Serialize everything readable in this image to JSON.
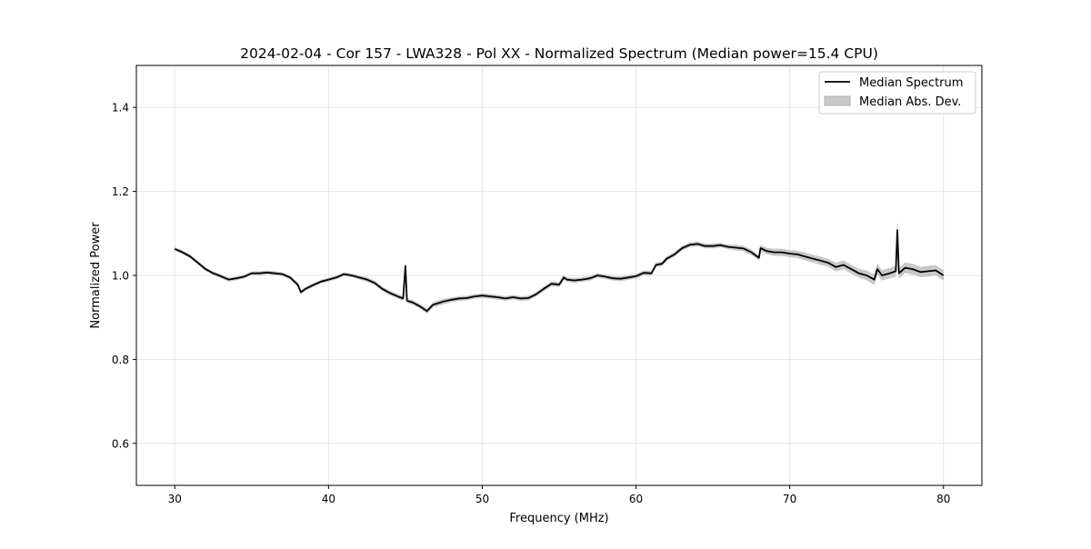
{
  "chart_data": {
    "type": "line",
    "title": "2024-02-04 - Cor 157 - LWA328 - Pol XX - Normalized Spectrum (Median power=15.4 CPU)",
    "xlabel": "Frequency (MHz)",
    "ylabel": "Normalized Power",
    "xlim": [
      27.5,
      82.5
    ],
    "ylim": [
      0.5,
      1.5
    ],
    "xticks": [
      30,
      40,
      50,
      60,
      70,
      80
    ],
    "xtick_labels": [
      "30",
      "40",
      "50",
      "60",
      "70",
      "80"
    ],
    "yticks": [
      0.6,
      0.8,
      1.0,
      1.2,
      1.4
    ],
    "ytick_labels": [
      "0.6",
      "0.8",
      "1.0",
      "1.2",
      "1.4"
    ],
    "grid": true,
    "legend_position": "top-right",
    "legend": [
      {
        "label": "Median Spectrum",
        "kind": "line",
        "color": "#000000"
      },
      {
        "label": "Median Abs. Dev.",
        "kind": "band",
        "color": "#c8c8c8"
      }
    ],
    "series": [
      {
        "name": "Median Spectrum",
        "columns": [
          "frequency_mhz",
          "median",
          "mad"
        ],
        "points": [
          [
            30,
            1.063,
            0.004
          ],
          [
            30.5,
            1.055,
            0.004
          ],
          [
            31,
            1.045,
            0.004
          ],
          [
            31.5,
            1.03,
            0.004
          ],
          [
            32,
            1.015,
            0.004
          ],
          [
            32.5,
            1.005,
            0.004
          ],
          [
            33,
            0.998,
            0.004
          ],
          [
            33.5,
            0.99,
            0.004
          ],
          [
            34,
            0.993,
            0.004
          ],
          [
            34.5,
            0.997,
            0.004
          ],
          [
            35,
            1.005,
            0.004
          ],
          [
            35.5,
            1.005,
            0.004
          ],
          [
            36,
            1.007,
            0.004
          ],
          [
            36.5,
            1.005,
            0.004
          ],
          [
            37,
            1.003,
            0.004
          ],
          [
            37.5,
            0.995,
            0.004
          ],
          [
            38,
            0.978,
            0.004
          ],
          [
            38.2,
            0.96,
            0.004
          ],
          [
            38.5,
            0.968,
            0.004
          ],
          [
            39,
            0.977,
            0.004
          ],
          [
            39.5,
            0.985,
            0.004
          ],
          [
            40,
            0.99,
            0.004
          ],
          [
            40.5,
            0.995,
            0.004
          ],
          [
            41,
            1.003,
            0.004
          ],
          [
            41.5,
            1.0,
            0.004
          ],
          [
            42,
            0.995,
            0.004
          ],
          [
            42.5,
            0.99,
            0.005
          ],
          [
            43,
            0.982,
            0.005
          ],
          [
            43.5,
            0.968,
            0.005
          ],
          [
            44,
            0.958,
            0.005
          ],
          [
            44.5,
            0.95,
            0.005
          ],
          [
            44.85,
            0.945,
            0.005
          ],
          [
            45.0,
            1.022,
            0.006
          ],
          [
            45.1,
            0.94,
            0.005
          ],
          [
            45.5,
            0.935,
            0.005
          ],
          [
            46,
            0.925,
            0.005
          ],
          [
            46.4,
            0.915,
            0.006
          ],
          [
            46.8,
            0.93,
            0.006
          ],
          [
            47.5,
            0.938,
            0.006
          ],
          [
            48,
            0.942,
            0.005
          ],
          [
            48.5,
            0.945,
            0.005
          ],
          [
            49,
            0.946,
            0.005
          ],
          [
            49.5,
            0.95,
            0.005
          ],
          [
            50,
            0.952,
            0.005
          ],
          [
            50.5,
            0.95,
            0.005
          ],
          [
            51,
            0.948,
            0.005
          ],
          [
            51.5,
            0.945,
            0.005
          ],
          [
            52,
            0.948,
            0.005
          ],
          [
            52.5,
            0.945,
            0.005
          ],
          [
            53,
            0.946,
            0.005
          ],
          [
            53.5,
            0.955,
            0.005
          ],
          [
            54,
            0.968,
            0.005
          ],
          [
            54.5,
            0.98,
            0.005
          ],
          [
            55,
            0.978,
            0.005
          ],
          [
            55.3,
            0.995,
            0.005
          ],
          [
            55.5,
            0.99,
            0.005
          ],
          [
            56,
            0.988,
            0.005
          ],
          [
            56.5,
            0.99,
            0.005
          ],
          [
            57,
            0.993,
            0.005
          ],
          [
            57.5,
            1.0,
            0.005
          ],
          [
            58,
            0.997,
            0.005
          ],
          [
            58.5,
            0.993,
            0.005
          ],
          [
            59,
            0.992,
            0.005
          ],
          [
            59.5,
            0.995,
            0.005
          ],
          [
            60,
            0.998,
            0.005
          ],
          [
            60.5,
            1.006,
            0.005
          ],
          [
            61,
            1.005,
            0.005
          ],
          [
            61.3,
            1.025,
            0.005
          ],
          [
            61.7,
            1.028,
            0.005
          ],
          [
            62,
            1.04,
            0.005
          ],
          [
            62.5,
            1.05,
            0.005
          ],
          [
            63,
            1.065,
            0.005
          ],
          [
            63.5,
            1.073,
            0.005
          ],
          [
            64,
            1.075,
            0.005
          ],
          [
            64.5,
            1.07,
            0.005
          ],
          [
            65,
            1.07,
            0.005
          ],
          [
            65.5,
            1.072,
            0.005
          ],
          [
            66,
            1.068,
            0.005
          ],
          [
            66.5,
            1.066,
            0.006
          ],
          [
            67,
            1.064,
            0.006
          ],
          [
            67.5,
            1.055,
            0.006
          ],
          [
            68,
            1.042,
            0.006
          ],
          [
            68.1,
            1.065,
            0.007
          ],
          [
            68.5,
            1.058,
            0.007
          ],
          [
            69,
            1.055,
            0.008
          ],
          [
            69.5,
            1.055,
            0.008
          ],
          [
            70,
            1.052,
            0.008
          ],
          [
            70.5,
            1.05,
            0.008
          ],
          [
            71,
            1.045,
            0.009
          ],
          [
            71.5,
            1.04,
            0.009
          ],
          [
            72,
            1.035,
            0.009
          ],
          [
            72.5,
            1.03,
            0.009
          ],
          [
            73,
            1.02,
            0.01
          ],
          [
            73.5,
            1.025,
            0.01
          ],
          [
            74,
            1.015,
            0.01
          ],
          [
            74.5,
            1.005,
            0.01
          ],
          [
            75,
            1.0,
            0.011
          ],
          [
            75.5,
            0.99,
            0.012
          ],
          [
            75.7,
            1.015,
            0.012
          ],
          [
            76,
            1.0,
            0.012
          ],
          [
            76.5,
            1.005,
            0.012
          ],
          [
            76.9,
            1.01,
            0.012
          ],
          [
            77.0,
            1.108,
            0.016
          ],
          [
            77.1,
            1.005,
            0.012
          ],
          [
            77.5,
            1.018,
            0.012
          ],
          [
            78,
            1.015,
            0.012
          ],
          [
            78.5,
            1.008,
            0.012
          ],
          [
            79,
            1.01,
            0.012
          ],
          [
            79.5,
            1.012,
            0.012
          ],
          [
            80,
            1.0,
            0.012
          ]
        ]
      }
    ]
  }
}
